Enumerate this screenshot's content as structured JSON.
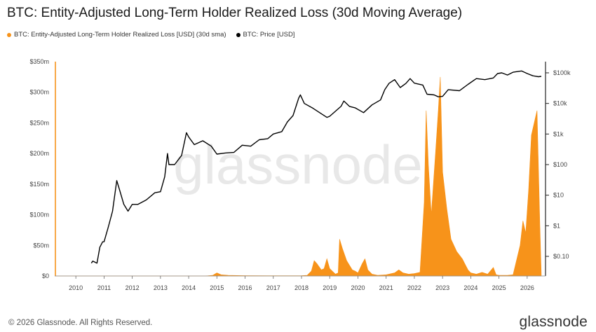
{
  "title": "BTC: Entity-Adjusted Long-Term Holder Realized Loss (30d Moving Average)",
  "legend": [
    {
      "label": "BTC: Entity-Adjusted Long-Term Holder Realized Loss [USD] (30d sma)",
      "color": "#f7931a"
    },
    {
      "label": "BTC: Price [USD]",
      "color": "#000000"
    }
  ],
  "watermark": "glassnode",
  "footer": {
    "copyright": "© 2026 Glassnode. All Rights Reserved.",
    "logo": "glassnode"
  },
  "chart_data": {
    "type": "area",
    "x_ticks": [
      "2010",
      "2011",
      "2012",
      "2013",
      "2014",
      "2015",
      "2016",
      "2017",
      "2018",
      "2019",
      "2020",
      "2021",
      "2022",
      "2023",
      "2024",
      "2025",
      "2026"
    ],
    "xlim": [
      2009.25,
      2026.65
    ],
    "y_left": {
      "ticks": [
        "$0",
        "$50m",
        "$100m",
        "$150m",
        "$200m",
        "$250m",
        "$300m",
        "$350m"
      ],
      "lim": [
        0,
        350
      ]
    },
    "y_right": {
      "ticks": [
        "$0.10",
        "$1",
        "$10",
        "$100",
        "$1k",
        "$10k",
        "$100k"
      ],
      "scale": "log"
    },
    "grid": false,
    "series": [
      {
        "name": "BTC: Entity-Adjusted Long-Term Holder Realized Loss [USD] (30d sma)",
        "color": "#f7931a",
        "axis": "left",
        "points": [
          [
            2009.25,
            0
          ],
          [
            2014.6,
            0
          ],
          [
            2014.85,
            1
          ],
          [
            2015.0,
            5
          ],
          [
            2015.15,
            2
          ],
          [
            2015.4,
            1
          ],
          [
            2016.0,
            0.5
          ],
          [
            2017.0,
            0.3
          ],
          [
            2018.0,
            0.5
          ],
          [
            2018.2,
            1
          ],
          [
            2018.35,
            8
          ],
          [
            2018.45,
            25
          ],
          [
            2018.55,
            20
          ],
          [
            2018.7,
            10
          ],
          [
            2018.8,
            12
          ],
          [
            2018.9,
            28
          ],
          [
            2019.0,
            12
          ],
          [
            2019.2,
            3
          ],
          [
            2019.3,
            5
          ],
          [
            2019.35,
            60
          ],
          [
            2019.45,
            45
          ],
          [
            2019.6,
            25
          ],
          [
            2019.8,
            10
          ],
          [
            2019.9,
            8
          ],
          [
            2020.0,
            5
          ],
          [
            2020.15,
            20
          ],
          [
            2020.25,
            28
          ],
          [
            2020.35,
            10
          ],
          [
            2020.5,
            3
          ],
          [
            2020.7,
            1
          ],
          [
            2021.0,
            2
          ],
          [
            2021.3,
            5
          ],
          [
            2021.45,
            10
          ],
          [
            2021.6,
            5
          ],
          [
            2021.8,
            3
          ],
          [
            2022.0,
            4
          ],
          [
            2022.2,
            6
          ],
          [
            2022.35,
            120
          ],
          [
            2022.42,
            270
          ],
          [
            2022.5,
            180
          ],
          [
            2022.6,
            100
          ],
          [
            2022.75,
            200
          ],
          [
            2022.85,
            270
          ],
          [
            2022.92,
            325
          ],
          [
            2023.0,
            170
          ],
          [
            2023.15,
            110
          ],
          [
            2023.3,
            60
          ],
          [
            2023.5,
            40
          ],
          [
            2023.7,
            28
          ],
          [
            2023.9,
            10
          ],
          [
            2024.0,
            5
          ],
          [
            2024.2,
            3
          ],
          [
            2024.4,
            6
          ],
          [
            2024.6,
            3
          ],
          [
            2024.8,
            14
          ],
          [
            2024.9,
            2
          ],
          [
            2025.0,
            1
          ],
          [
            2025.3,
            1
          ],
          [
            2025.5,
            2
          ],
          [
            2025.75,
            50
          ],
          [
            2025.85,
            90
          ],
          [
            2025.95,
            70
          ],
          [
            2026.05,
            140
          ],
          [
            2026.15,
            230
          ],
          [
            2026.25,
            250
          ],
          [
            2026.35,
            270
          ],
          [
            2026.45,
            80
          ],
          [
            2026.5,
            0
          ]
        ]
      },
      {
        "name": "BTC: Price [USD]",
        "color": "#000000",
        "axis": "right",
        "points": [
          [
            2010.55,
            0.06
          ],
          [
            2010.6,
            0.07
          ],
          [
            2010.75,
            0.06
          ],
          [
            2010.85,
            0.2
          ],
          [
            2010.95,
            0.3
          ],
          [
            2011.0,
            0.3
          ],
          [
            2011.15,
            0.9
          ],
          [
            2011.3,
            3
          ],
          [
            2011.45,
            30
          ],
          [
            2011.55,
            15
          ],
          [
            2011.7,
            5
          ],
          [
            2011.85,
            3
          ],
          [
            2012.0,
            5
          ],
          [
            2012.2,
            5
          ],
          [
            2012.5,
            7
          ],
          [
            2012.8,
            12
          ],
          [
            2013.0,
            13
          ],
          [
            2013.15,
            40
          ],
          [
            2013.25,
            230
          ],
          [
            2013.3,
            100
          ],
          [
            2013.5,
            100
          ],
          [
            2013.75,
            200
          ],
          [
            2013.92,
            1100
          ],
          [
            2014.0,
            800
          ],
          [
            2014.2,
            450
          ],
          [
            2014.5,
            600
          ],
          [
            2014.8,
            400
          ],
          [
            2015.0,
            220
          ],
          [
            2015.3,
            240
          ],
          [
            2015.6,
            250
          ],
          [
            2015.9,
            430
          ],
          [
            2016.2,
            400
          ],
          [
            2016.5,
            650
          ],
          [
            2016.8,
            700
          ],
          [
            2017.0,
            1000
          ],
          [
            2017.3,
            1200
          ],
          [
            2017.5,
            2500
          ],
          [
            2017.7,
            4000
          ],
          [
            2017.9,
            15000
          ],
          [
            2017.96,
            19000
          ],
          [
            2018.1,
            10000
          ],
          [
            2018.4,
            7000
          ],
          [
            2018.9,
            3500
          ],
          [
            2019.0,
            3800
          ],
          [
            2019.4,
            8000
          ],
          [
            2019.5,
            12000
          ],
          [
            2019.7,
            8000
          ],
          [
            2019.9,
            7200
          ],
          [
            2020.2,
            5000
          ],
          [
            2020.5,
            9000
          ],
          [
            2020.8,
            13000
          ],
          [
            2020.95,
            28000
          ],
          [
            2021.1,
            45000
          ],
          [
            2021.3,
            60000
          ],
          [
            2021.5,
            33000
          ],
          [
            2021.7,
            45000
          ],
          [
            2021.85,
            65000
          ],
          [
            2022.0,
            46000
          ],
          [
            2022.3,
            40000
          ],
          [
            2022.45,
            20000
          ],
          [
            2022.7,
            19000
          ],
          [
            2022.85,
            16500
          ],
          [
            2023.0,
            17000
          ],
          [
            2023.2,
            28000
          ],
          [
            2023.6,
            26000
          ],
          [
            2023.9,
            42000
          ],
          [
            2024.2,
            65000
          ],
          [
            2024.5,
            60000
          ],
          [
            2024.8,
            68000
          ],
          [
            2024.95,
            95000
          ],
          [
            2025.1,
            100000
          ],
          [
            2025.3,
            85000
          ],
          [
            2025.5,
            105000
          ],
          [
            2025.8,
            115000
          ],
          [
            2026.0,
            95000
          ],
          [
            2026.2,
            80000
          ],
          [
            2026.4,
            75000
          ],
          [
            2026.5,
            77000
          ]
        ]
      }
    ]
  }
}
